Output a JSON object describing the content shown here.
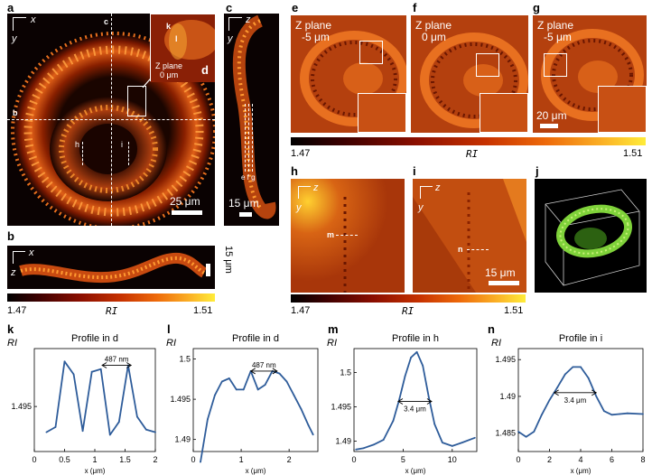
{
  "figure": {
    "panels": {
      "a": "a",
      "b": "b",
      "c": "c",
      "d": "d",
      "e": "e",
      "f": "f",
      "g": "g",
      "h": "h",
      "i": "i",
      "j": "j",
      "k": "k",
      "l": "l",
      "m": "m",
      "n": "n"
    },
    "axes": {
      "x": "x",
      "y": "y",
      "z": "z"
    },
    "panel_a": {
      "line_c": "c",
      "line_b": "b",
      "mark_h": "h",
      "mark_i": "i",
      "scalebar": "25 μm"
    },
    "inset_d": {
      "mark_k": "k",
      "mark_l": "l",
      "zplane": "Z plane",
      "zvalue": "0 μm",
      "letter": "d"
    },
    "panel_b": {
      "scalebar": "15 μm"
    },
    "panel_c": {
      "marks": "e f g",
      "scalebar": "15 μm"
    },
    "panel_e": {
      "zplane": "Z plane",
      "zvalue": "-5 μm"
    },
    "panel_f": {
      "zplane": "Z plane",
      "zvalue": "0 μm"
    },
    "panel_g": {
      "zplane": "Z plane",
      "zvalue": "-5 μm",
      "scalebar": "20 μm"
    },
    "panel_h": {
      "mark": "m"
    },
    "panel_i": {
      "mark": "n",
      "scalebar": "15 μm"
    },
    "colorbars": {
      "label": "RI",
      "min": "1.47",
      "max": "1.51",
      "colors": [
        "#000000",
        "#3d0000",
        "#8a0e00",
        "#c73200",
        "#ee6a0a",
        "#fbb226",
        "#ffec3a"
      ]
    },
    "colors": {
      "curve": "#2e5c9a",
      "render": "#7fd23a"
    }
  },
  "chart_data": [
    {
      "type": "line",
      "panel": "k",
      "title": "Profile in d",
      "ylabel": "RI",
      "xlabel": "x (μm)",
      "xlim": [
        0,
        2
      ],
      "ylim": [
        1.4915,
        1.4995
      ],
      "xticks": [
        0,
        0.5,
        1,
        1.5,
        2
      ],
      "xtick_labels": [
        "0",
        "0.5",
        "1",
        "1.5",
        "2"
      ],
      "yticks": [
        1.495
      ],
      "ytick_labels": [
        "1.495"
      ],
      "x": [
        0.2,
        0.35,
        0.5,
        0.65,
        0.8,
        0.95,
        1.1,
        1.25,
        1.4,
        1.55,
        1.7,
        1.85,
        2.0
      ],
      "y": [
        1.493,
        1.4934,
        1.4985,
        1.4975,
        1.4931,
        1.4977,
        1.4979,
        1.4928,
        1.4938,
        1.4982,
        1.4942,
        1.4932,
        1.493
      ],
      "annotation": {
        "text": "487 nm",
        "x1": 1.12,
        "x2": 1.6,
        "y": 1.4982
      }
    },
    {
      "type": "line",
      "panel": "l",
      "title": "Profile in d",
      "ylabel": "RI",
      "xlabel": "x (μm)",
      "xlim": [
        0,
        2.6
      ],
      "ylim": [
        1.4885,
        1.5013
      ],
      "xticks": [
        0,
        1,
        2
      ],
      "xtick_labels": [
        "0",
        "1",
        "2"
      ],
      "yticks": [
        1.49,
        1.495,
        1.5
      ],
      "ytick_labels": [
        "1.49",
        "1.495",
        "1.5"
      ],
      "x": [
        0.15,
        0.3,
        0.45,
        0.6,
        0.75,
        0.9,
        1.05,
        1.2,
        1.35,
        1.5,
        1.65,
        1.8,
        1.95,
        2.1,
        2.25,
        2.4,
        2.5
      ],
      "y": [
        1.4872,
        1.4925,
        1.4955,
        1.4972,
        1.4976,
        1.4962,
        1.4962,
        1.4985,
        1.4962,
        1.4968,
        1.4985,
        1.4982,
        1.4972,
        1.4955,
        1.4938,
        1.4918,
        1.4906
      ],
      "annotation": {
        "text": "487 nm",
        "x1": 1.2,
        "x2": 1.75,
        "y": 1.4985
      }
    },
    {
      "type": "line",
      "panel": "m",
      "title": "Profile in h",
      "ylabel": "RI",
      "xlabel": "x (μm)",
      "xlim": [
        0,
        12.5
      ],
      "ylim": [
        1.4885,
        1.5035
      ],
      "xticks": [
        0,
        5,
        10
      ],
      "xtick_labels": [
        "0",
        "5",
        "10"
      ],
      "yticks": [
        1.49,
        1.495,
        1.5
      ],
      "ytick_labels": [
        "1.49",
        "1.495",
        "1.5"
      ],
      "x": [
        0.2,
        1,
        2,
        3,
        4,
        4.6,
        5.2,
        5.8,
        6.4,
        7.0,
        7.6,
        8.2,
        9,
        10,
        11,
        12.3
      ],
      "y": [
        1.4888,
        1.489,
        1.4895,
        1.4902,
        1.493,
        1.496,
        1.4995,
        1.5022,
        1.503,
        1.501,
        1.4965,
        1.4925,
        1.4898,
        1.4893,
        1.4898,
        1.4905
      ],
      "annotation": {
        "text": "3.4 μm",
        "x1": 4.5,
        "x2": 7.9,
        "y": 1.4958
      }
    },
    {
      "type": "line",
      "panel": "n",
      "title": "Profile in i",
      "ylabel": "RI",
      "xlabel": "x (μm)",
      "xlim": [
        0,
        8
      ],
      "ylim": [
        1.4825,
        1.4965
      ],
      "xticks": [
        0,
        2,
        4,
        6,
        8
      ],
      "xtick_labels": [
        "0",
        "2",
        "4",
        "6",
        "8"
      ],
      "yticks": [
        1.485,
        1.49,
        1.495
      ],
      "ytick_labels": [
        "1.485",
        "1.49",
        "1.495"
      ],
      "x": [
        0,
        0.5,
        1,
        1.5,
        2,
        2.5,
        3,
        3.5,
        4,
        4.5,
        5,
        5.5,
        6,
        6.5,
        7,
        8
      ],
      "y": [
        1.4852,
        1.4845,
        1.4852,
        1.4875,
        1.4895,
        1.4912,
        1.493,
        1.494,
        1.494,
        1.4925,
        1.49,
        1.488,
        1.4875,
        1.4876,
        1.4877,
        1.4876
      ],
      "annotation": {
        "text": "3.4 μm",
        "x1": 2.3,
        "x2": 5.0,
        "y": 1.4905
      }
    }
  ]
}
